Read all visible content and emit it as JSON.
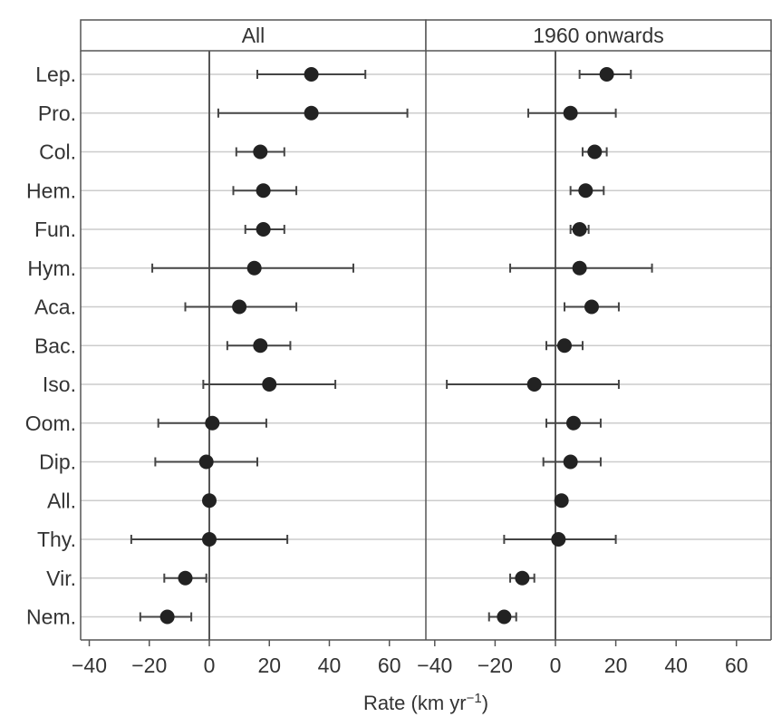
{
  "chart_data": {
    "type": "scatter",
    "subtype": "dot-and-whisker, faceted",
    "categories": [
      "Lep.",
      "Pro.",
      "Col.",
      "Hem.",
      "Fun.",
      "Hym.",
      "Aca.",
      "Bac.",
      "Iso.",
      "Oom.",
      "Dip.",
      "All.",
      "Thy.",
      "Vir.",
      "Nem."
    ],
    "xlabel": "Rate (km yr",
    "xlabel_superscript": "−1",
    "xlabel_close": ")",
    "xlim": [
      -40,
      65
    ],
    "xticks": [
      -40,
      -20,
      0,
      20,
      40,
      60
    ],
    "xtick_labels": [
      "−40",
      "−20",
      "0",
      "20",
      "40",
      "60"
    ],
    "reference_line_x": 0,
    "grid": "horizontal per category",
    "panels": [
      {
        "title": "All",
        "points": [
          {
            "category": "Lep.",
            "value": 34,
            "low": 16,
            "high": 52
          },
          {
            "category": "Pro.",
            "value": 34,
            "low": 3,
            "high": 66
          },
          {
            "category": "Col.",
            "value": 17,
            "low": 9,
            "high": 25
          },
          {
            "category": "Hem.",
            "value": 18,
            "low": 8,
            "high": 29
          },
          {
            "category": "Fun.",
            "value": 18,
            "low": 12,
            "high": 25
          },
          {
            "category": "Hym.",
            "value": 15,
            "low": -19,
            "high": 48
          },
          {
            "category": "Aca.",
            "value": 10,
            "low": -8,
            "high": 29
          },
          {
            "category": "Bac.",
            "value": 17,
            "low": 6,
            "high": 27
          },
          {
            "category": "Iso.",
            "value": 20,
            "low": -2,
            "high": 42
          },
          {
            "category": "Oom.",
            "value": 1,
            "low": -17,
            "high": 19
          },
          {
            "category": "Dip.",
            "value": -1,
            "low": -18,
            "high": 16
          },
          {
            "category": "All.",
            "value": 0,
            "low": null,
            "high": null
          },
          {
            "category": "Thy.",
            "value": 0,
            "low": -26,
            "high": 26
          },
          {
            "category": "Vir.",
            "value": -8,
            "low": -15,
            "high": -1
          },
          {
            "category": "Nem.",
            "value": -14,
            "low": -23,
            "high": -6
          }
        ]
      },
      {
        "title": "1960 onwards",
        "points": [
          {
            "category": "Lep.",
            "value": 17,
            "low": 8,
            "high": 25
          },
          {
            "category": "Pro.",
            "value": 5,
            "low": -9,
            "high": 20
          },
          {
            "category": "Col.",
            "value": 13,
            "low": 9,
            "high": 17
          },
          {
            "category": "Hem.",
            "value": 10,
            "low": 5,
            "high": 16
          },
          {
            "category": "Fun.",
            "value": 8,
            "low": 5,
            "high": 11
          },
          {
            "category": "Hym.",
            "value": 8,
            "low": -15,
            "high": 32
          },
          {
            "category": "Aca.",
            "value": 12,
            "low": 3,
            "high": 21
          },
          {
            "category": "Bac.",
            "value": 3,
            "low": -3,
            "high": 9
          },
          {
            "category": "Iso.",
            "value": -7,
            "low": -36,
            "high": 21
          },
          {
            "category": "Oom.",
            "value": 6,
            "low": -3,
            "high": 15
          },
          {
            "category": "Dip.",
            "value": 5,
            "low": -4,
            "high": 15
          },
          {
            "category": "All.",
            "value": 2,
            "low": null,
            "high": null
          },
          {
            "category": "Thy.",
            "value": 1,
            "low": -17,
            "high": 20
          },
          {
            "category": "Vir.",
            "value": -11,
            "low": -15,
            "high": -7
          },
          {
            "category": "Nem.",
            "value": -17,
            "low": -22,
            "high": -13
          }
        ]
      }
    ],
    "colors": {
      "marker": "#222222",
      "whisker": "#444444",
      "gridline": "#cccccc",
      "reference_line": "#555555",
      "frame": "#555555",
      "strip": "#ffffff",
      "text": "#333333"
    }
  }
}
